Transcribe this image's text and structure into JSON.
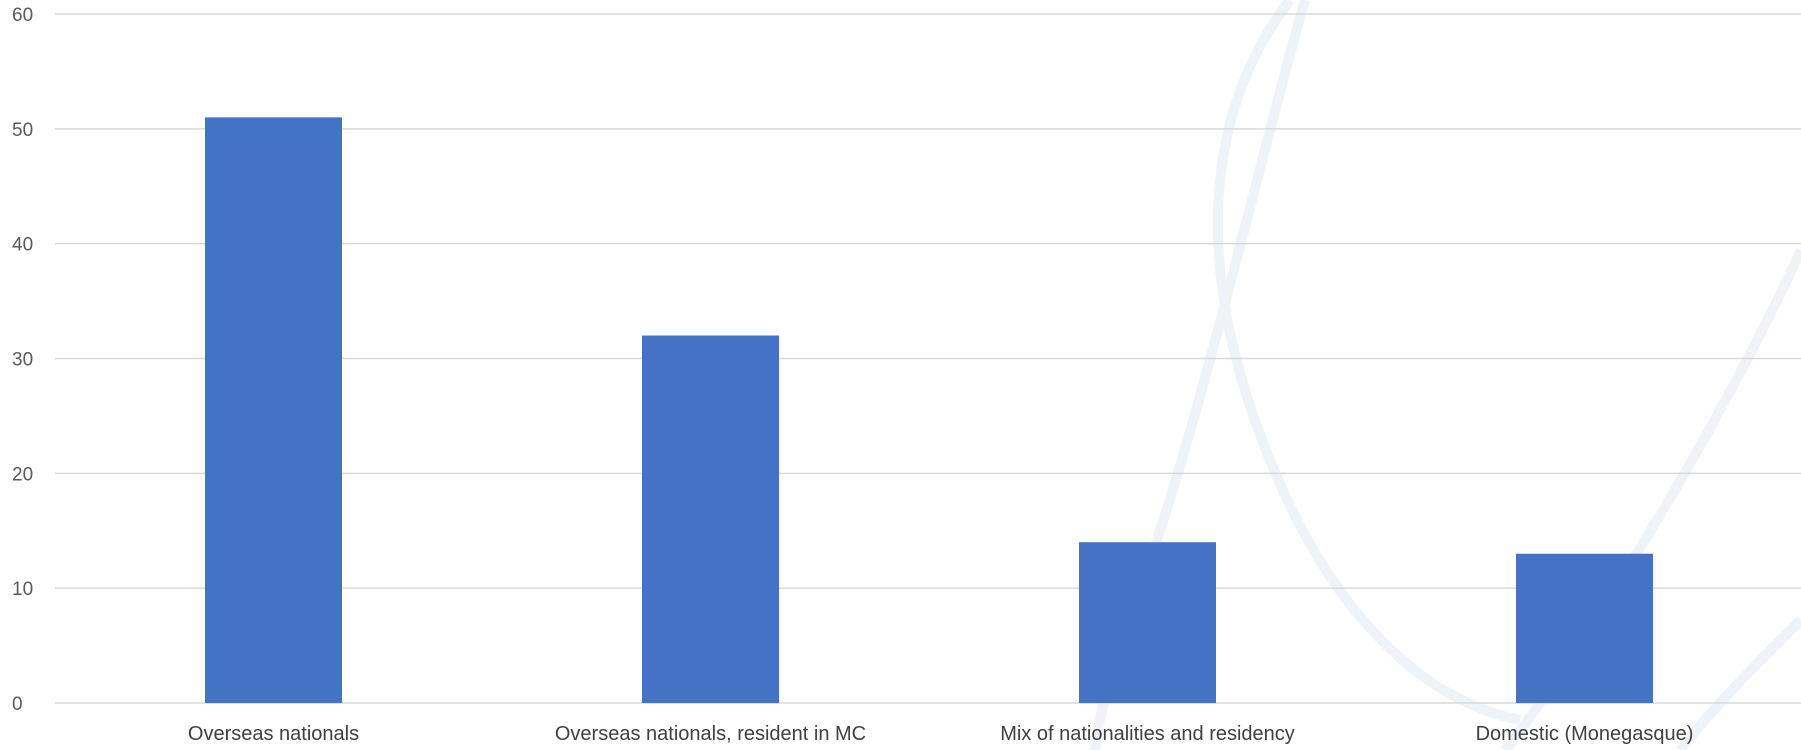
{
  "chart_data": {
    "type": "bar",
    "title": "",
    "xlabel": "",
    "ylabel": "",
    "categories": [
      "Overseas nationals",
      "Overseas nationals, resident in MC",
      "Mix of nationalities and residency",
      "Domestic (Monegasque)"
    ],
    "values": [
      51,
      32,
      14,
      13
    ],
    "ylim": [
      0,
      60
    ],
    "yticks": [
      0,
      10,
      20,
      30,
      40,
      50,
      60
    ],
    "grid": true,
    "legend": "none"
  },
  "colors": {
    "bar": "#4472c4",
    "grid": "#d9d9d9",
    "tick_text": "#595959",
    "category_text": "#404040",
    "watermark": "#e3e8ef"
  }
}
